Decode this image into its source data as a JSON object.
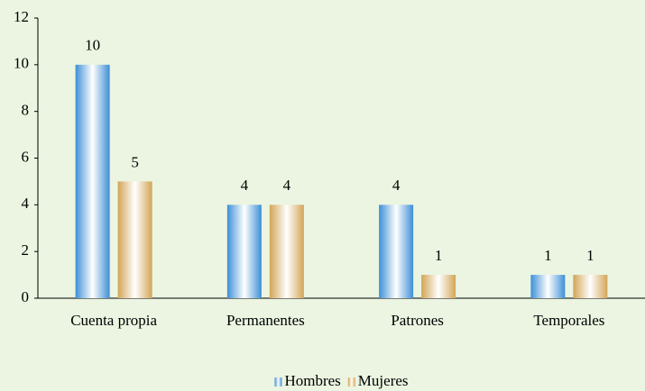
{
  "chart_data": {
    "type": "bar",
    "categories": [
      "Cuenta propia",
      "Permanentes",
      "Patrones",
      "Temporales"
    ],
    "series": [
      {
        "name": "Hombres",
        "color": "#3d8fd6",
        "values": [
          10,
          4,
          4,
          1
        ]
      },
      {
        "name": "Mujeres",
        "color": "#d2a556",
        "values": [
          5,
          4,
          1,
          1
        ]
      }
    ],
    "ylim": [
      0,
      12
    ],
    "yticks": [
      0,
      2,
      4,
      6,
      8,
      10,
      12
    ],
    "grid": false,
    "legend": "bottom"
  }
}
